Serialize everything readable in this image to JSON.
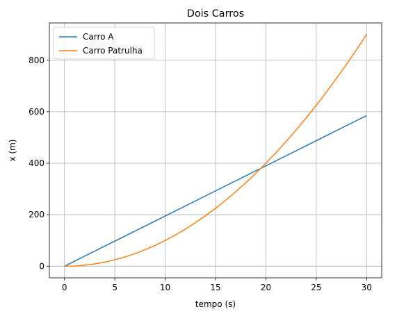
{
  "chart_data": {
    "type": "line",
    "title": "Dois Carros",
    "xlabel": "tempo (s)",
    "ylabel": "x (m)",
    "xlim": [
      -1.5,
      31.5
    ],
    "ylim": [
      -45,
      945
    ],
    "xticks": [
      0,
      5,
      10,
      15,
      20,
      25,
      30
    ],
    "yticks": [
      0,
      200,
      400,
      600,
      800
    ],
    "xtick_labels": [
      "0",
      "5",
      "10",
      "15",
      "20",
      "25",
      "30"
    ],
    "ytick_labels": [
      "0",
      "200",
      "400",
      "600",
      "800"
    ],
    "grid": true,
    "legend": {
      "position": "top-left"
    },
    "series": [
      {
        "name": "Carro A",
        "color": "#1f77b4",
        "x": [
          0,
          5,
          10,
          15,
          20,
          25,
          30
        ],
        "y": [
          0,
          97.5,
          195,
          292.5,
          390,
          487.5,
          585
        ]
      },
      {
        "name": "Carro Patrulha",
        "color": "#ff7f0e",
        "x": [
          0,
          1,
          2,
          3,
          4,
          5,
          6,
          7,
          8,
          9,
          10,
          11,
          12,
          13,
          14,
          15,
          16,
          17,
          18,
          19,
          20,
          21,
          22,
          23,
          24,
          25,
          26,
          27,
          28,
          29,
          30
        ],
        "y": [
          0,
          1,
          4,
          9,
          16,
          25,
          36,
          49,
          64,
          81,
          100,
          121,
          144,
          169,
          196,
          225,
          256,
          289,
          324,
          361,
          400,
          441,
          484,
          529,
          576,
          625,
          676,
          729,
          784,
          841,
          900
        ]
      }
    ]
  }
}
